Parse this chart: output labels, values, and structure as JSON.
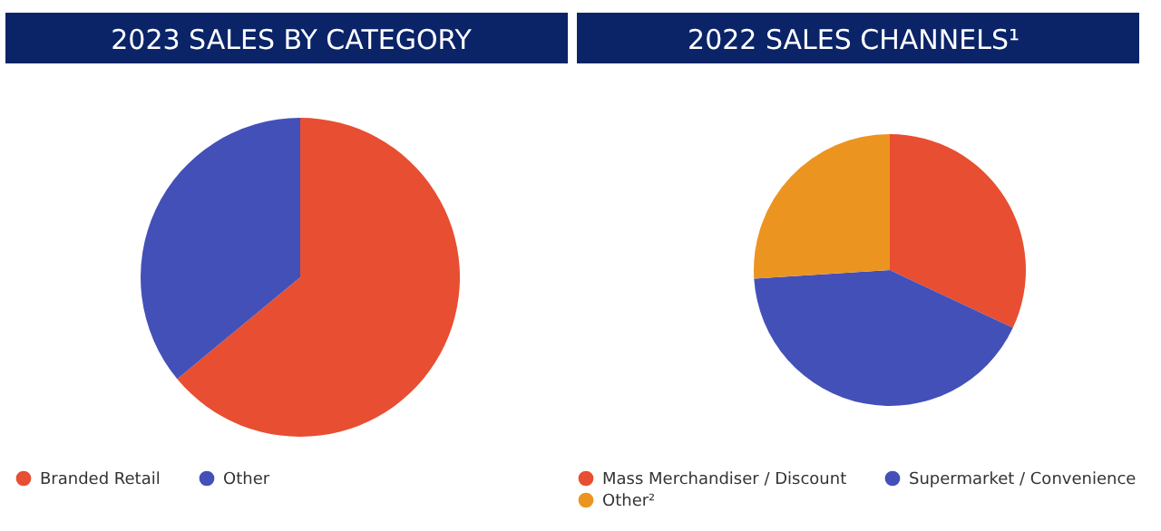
{
  "chart_data": [
    {
      "type": "pie",
      "title": "2023 SALES BY CATEGORY",
      "categories": [
        "Branded Retail",
        "Other"
      ],
      "values": [
        64,
        36
      ],
      "colors": [
        "#e84e31",
        "#4350b8"
      ],
      "legend": "bottom"
    },
    {
      "type": "pie",
      "title": "2022 SALES CHANNELS¹",
      "categories": [
        "Mass Merchandiser / Discount",
        "Supermarket / Convenience",
        "Other²"
      ],
      "values": [
        32,
        42,
        26
      ],
      "colors": [
        "#e84e31",
        "#4350b8",
        "#ec9420"
      ],
      "legend": "bottom"
    }
  ]
}
